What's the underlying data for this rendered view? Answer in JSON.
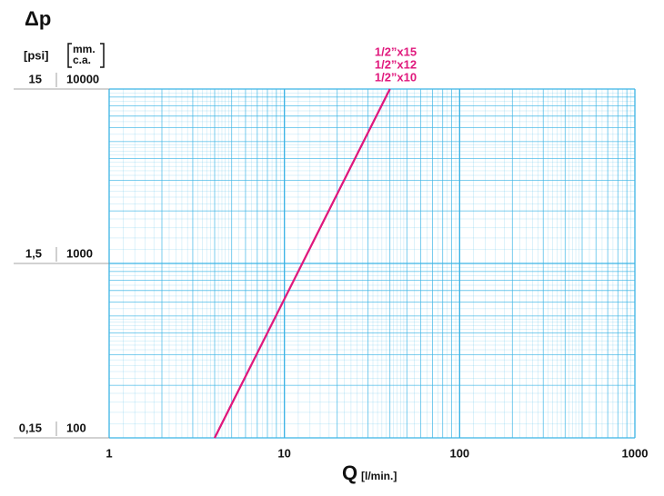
{
  "chart_data": {
    "type": "line",
    "y_label": "Δp",
    "y2_label": "[psi]",
    "y_unit": [
      "mm.",
      "c.a."
    ],
    "x_label": "Q",
    "x_unit": "[l/min.]",
    "x": [
      4,
      40
    ],
    "series": [
      {
        "name": "1/2”x15",
        "color": "#e0197d",
        "values": [
          100,
          10000
        ]
      },
      {
        "name": "1/2”x12",
        "color": "#e0197d",
        "values": [
          100,
          10000
        ]
      },
      {
        "name": "1/2”x10",
        "color": "#e0197d",
        "values": [
          100,
          10000
        ]
      }
    ],
    "xlim": [
      1,
      1000
    ],
    "xticks": [
      1,
      10,
      100,
      1000
    ],
    "xscale": "log",
    "ylim": [
      100,
      10000
    ],
    "yticks": [
      100,
      1000,
      10000
    ],
    "yscale": "log",
    "y2lim": [
      0.15,
      15
    ],
    "y2ticks": [
      {
        "value": 0.15,
        "label": "0,15"
      },
      {
        "value": 1.5,
        "label": "1,5"
      },
      15
    ],
    "grid": true,
    "grid_color": "#3bb4e5"
  }
}
